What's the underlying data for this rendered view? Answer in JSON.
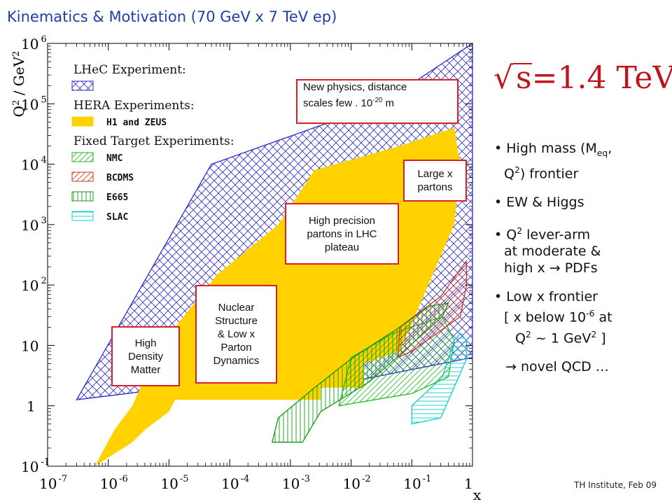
{
  "slide_title": "Kinematics & Motivation (70 GeV x 7 TeV ep)",
  "footer": "TH Institute, Feb 09",
  "energy_label": {
    "sqrt": "√",
    "s": "s",
    "value": "=1.4 TeV"
  },
  "chart_data": {
    "type": "area",
    "title": "",
    "xlabel": "x",
    "ylabel": "Q² / GeV²",
    "x_scale": "log",
    "y_scale": "log",
    "xlim": [
      1e-07,
      1
    ],
    "ylim": [
      0.1,
      1000000.0
    ],
    "x_tick_labels": [
      {
        "base": "10",
        "exp": "-7"
      },
      {
        "base": "10",
        "exp": "-6"
      },
      {
        "base": "10",
        "exp": "-5"
      },
      {
        "base": "10",
        "exp": "-4"
      },
      {
        "base": "10",
        "exp": "-3"
      },
      {
        "base": "10",
        "exp": "-2"
      },
      {
        "base": "10",
        "exp": "-1"
      },
      {
        "base": "1",
        "exp": ""
      }
    ],
    "y_tick_labels": [
      {
        "base": "10",
        "exp": "-1"
      },
      {
        "base": "1",
        "exp": ""
      },
      {
        "base": "10",
        "exp": ""
      },
      {
        "base": "10",
        "exp": "2"
      },
      {
        "base": "10",
        "exp": "3"
      },
      {
        "base": "10",
        "exp": "4"
      },
      {
        "base": "10",
        "exp": "5"
      },
      {
        "base": "10",
        "exp": "6"
      }
    ],
    "legend": {
      "placement": "top-left",
      "groups": [
        {
          "heading": "LHeC Experiment:",
          "entries": [
            {
              "name": "",
              "color": "#2b2bc8",
              "pattern": "crosshatch"
            }
          ]
        },
        {
          "heading": "HERA Experiments:",
          "entries": [
            {
              "name": "H1 and ZEUS",
              "color": "#ffd200",
              "pattern": "solid"
            }
          ]
        },
        {
          "heading": "Fixed Target Experiments:",
          "entries": [
            {
              "name": "NMC",
              "color": "#22bb22",
              "pattern": "hatch"
            },
            {
              "name": "BCDMS",
              "color": "#d03020",
              "pattern": "hatch"
            },
            {
              "name": "E665",
              "color": "#119911",
              "pattern": "vertical"
            },
            {
              "name": "SLAC",
              "color": "#11cccc",
              "pattern": "horizontal"
            }
          ]
        }
      ]
    },
    "regions": [
      {
        "name": "LHeC",
        "color": "#2b2bc8",
        "pattern": "crosshatch",
        "points": [
          [
            3e-07,
            1.26
          ],
          [
            1.26e-05,
            2.0
          ],
          [
            0.00316,
            2.0
          ],
          [
            1.0,
            6.3
          ],
          [
            1.0,
            1000000.0
          ],
          [
            0.0316,
            100000.0
          ],
          [
            5e-05,
            10000.0
          ],
          [
            3e-07,
            1.26
          ]
        ]
      },
      {
        "name": "H1 and ZEUS",
        "color": "#ffd200",
        "pattern": "solid",
        "points": [
          [
            6e-07,
            0.1
          ],
          [
            2.5e-06,
            0.25
          ],
          [
            4e-06,
            0.4
          ],
          [
            1e-05,
            0.8
          ],
          [
            1.26e-05,
            1.26
          ],
          [
            0.00316,
            1.26
          ],
          [
            0.00316,
            2.0
          ],
          [
            0.0158,
            2.0
          ],
          [
            0.0158,
            5.0
          ],
          [
            0.063,
            8.0
          ],
          [
            0.5,
            1000.0
          ],
          [
            0.63,
            10000.0
          ],
          [
            0.5,
            40000.0
          ],
          [
            0.063,
            20000.0
          ],
          [
            0.0025,
            8000.0
          ],
          [
            0.00063,
            1000.0
          ],
          [
            6.3e-05,
            150.0
          ],
          [
            1.26e-05,
            20
          ],
          [
            4e-06,
            3.0
          ],
          [
            2.5e-06,
            1.0
          ],
          [
            1.26e-06,
            0.4
          ],
          [
            6e-07,
            0.1
          ]
        ]
      },
      {
        "name": "NMC",
        "color": "#22bb22",
        "pattern": "hatch",
        "points": [
          [
            0.0063,
            1.0
          ],
          [
            0.1,
            1.6
          ],
          [
            0.4,
            3.0
          ],
          [
            0.5,
            12
          ],
          [
            0.32,
            30
          ],
          [
            0.05,
            16
          ],
          [
            0.01,
            6.3
          ],
          [
            0.0063,
            1.0
          ]
        ]
      },
      {
        "name": "BCDMS",
        "color": "#d03020",
        "pattern": "hatch",
        "points": [
          [
            0.06,
            6.3
          ],
          [
            0.1,
            8.0
          ],
          [
            0.63,
            30
          ],
          [
            0.8,
            100
          ],
          [
            0.79,
            250
          ],
          [
            0.3,
            65
          ],
          [
            0.063,
            20
          ],
          [
            0.06,
            6.3
          ]
        ]
      },
      {
        "name": "E665",
        "color": "#119911",
        "pattern": "vertical",
        "points": [
          [
            0.0005,
            0.25
          ],
          [
            0.00158,
            0.25
          ],
          [
            0.00316,
            0.8
          ],
          [
            0.02,
            2.5
          ],
          [
            0.32,
            30
          ],
          [
            0.4,
            50
          ],
          [
            0.2,
            45
          ],
          [
            0.063,
            20
          ],
          [
            0.01,
            6.0
          ],
          [
            0.0025,
            2.0
          ],
          [
            0.00063,
            0.63
          ],
          [
            0.0005,
            0.25
          ]
        ]
      },
      {
        "name": "SLAC",
        "color": "#11cccc",
        "pattern": "horizontal",
        "points": [
          [
            0.1,
            0.5
          ],
          [
            0.3,
            0.63
          ],
          [
            0.8,
            6.0
          ],
          [
            0.8,
            12
          ],
          [
            0.63,
            16
          ],
          [
            0.5,
            12
          ],
          [
            0.32,
            3.0
          ],
          [
            0.1,
            1.0
          ],
          [
            0.1,
            0.5
          ]
        ]
      }
    ]
  },
  "annotations": [
    {
      "lines": [
        "New physics, distance"
      ],
      "line2_prefix": "scales few . 10",
      "line2_sup": "-20",
      "line2_suffix": " m"
    },
    {
      "lines": [
        "Large x",
        "partons"
      ]
    },
    {
      "lines": [
        "High precision",
        "partons in LHC",
        "plateau"
      ]
    },
    {
      "lines": [
        "Nuclear",
        "Structure",
        "& Low x",
        "Parton",
        "Dynamics"
      ]
    },
    {
      "lines": [
        "High",
        "Density",
        "Matter"
      ]
    }
  ],
  "bullets": [
    {
      "parts": [
        "• High mass (M",
        "eq",
        ",",
        "Q",
        "2",
        ")  frontier"
      ]
    },
    {
      "text": "• EW & Higgs"
    },
    {
      "parts": [
        "• Q",
        "2",
        " lever-arm",
        "at moderate &",
        "high x  → PDFs"
      ]
    },
    {
      "parts": [
        "• Low x frontier",
        "[ x below 10",
        "-6",
        " at",
        "Q",
        "2",
        " ~ 1 GeV",
        "2",
        " ]"
      ]
    },
    {
      "text": "→ novel QCD …"
    }
  ]
}
